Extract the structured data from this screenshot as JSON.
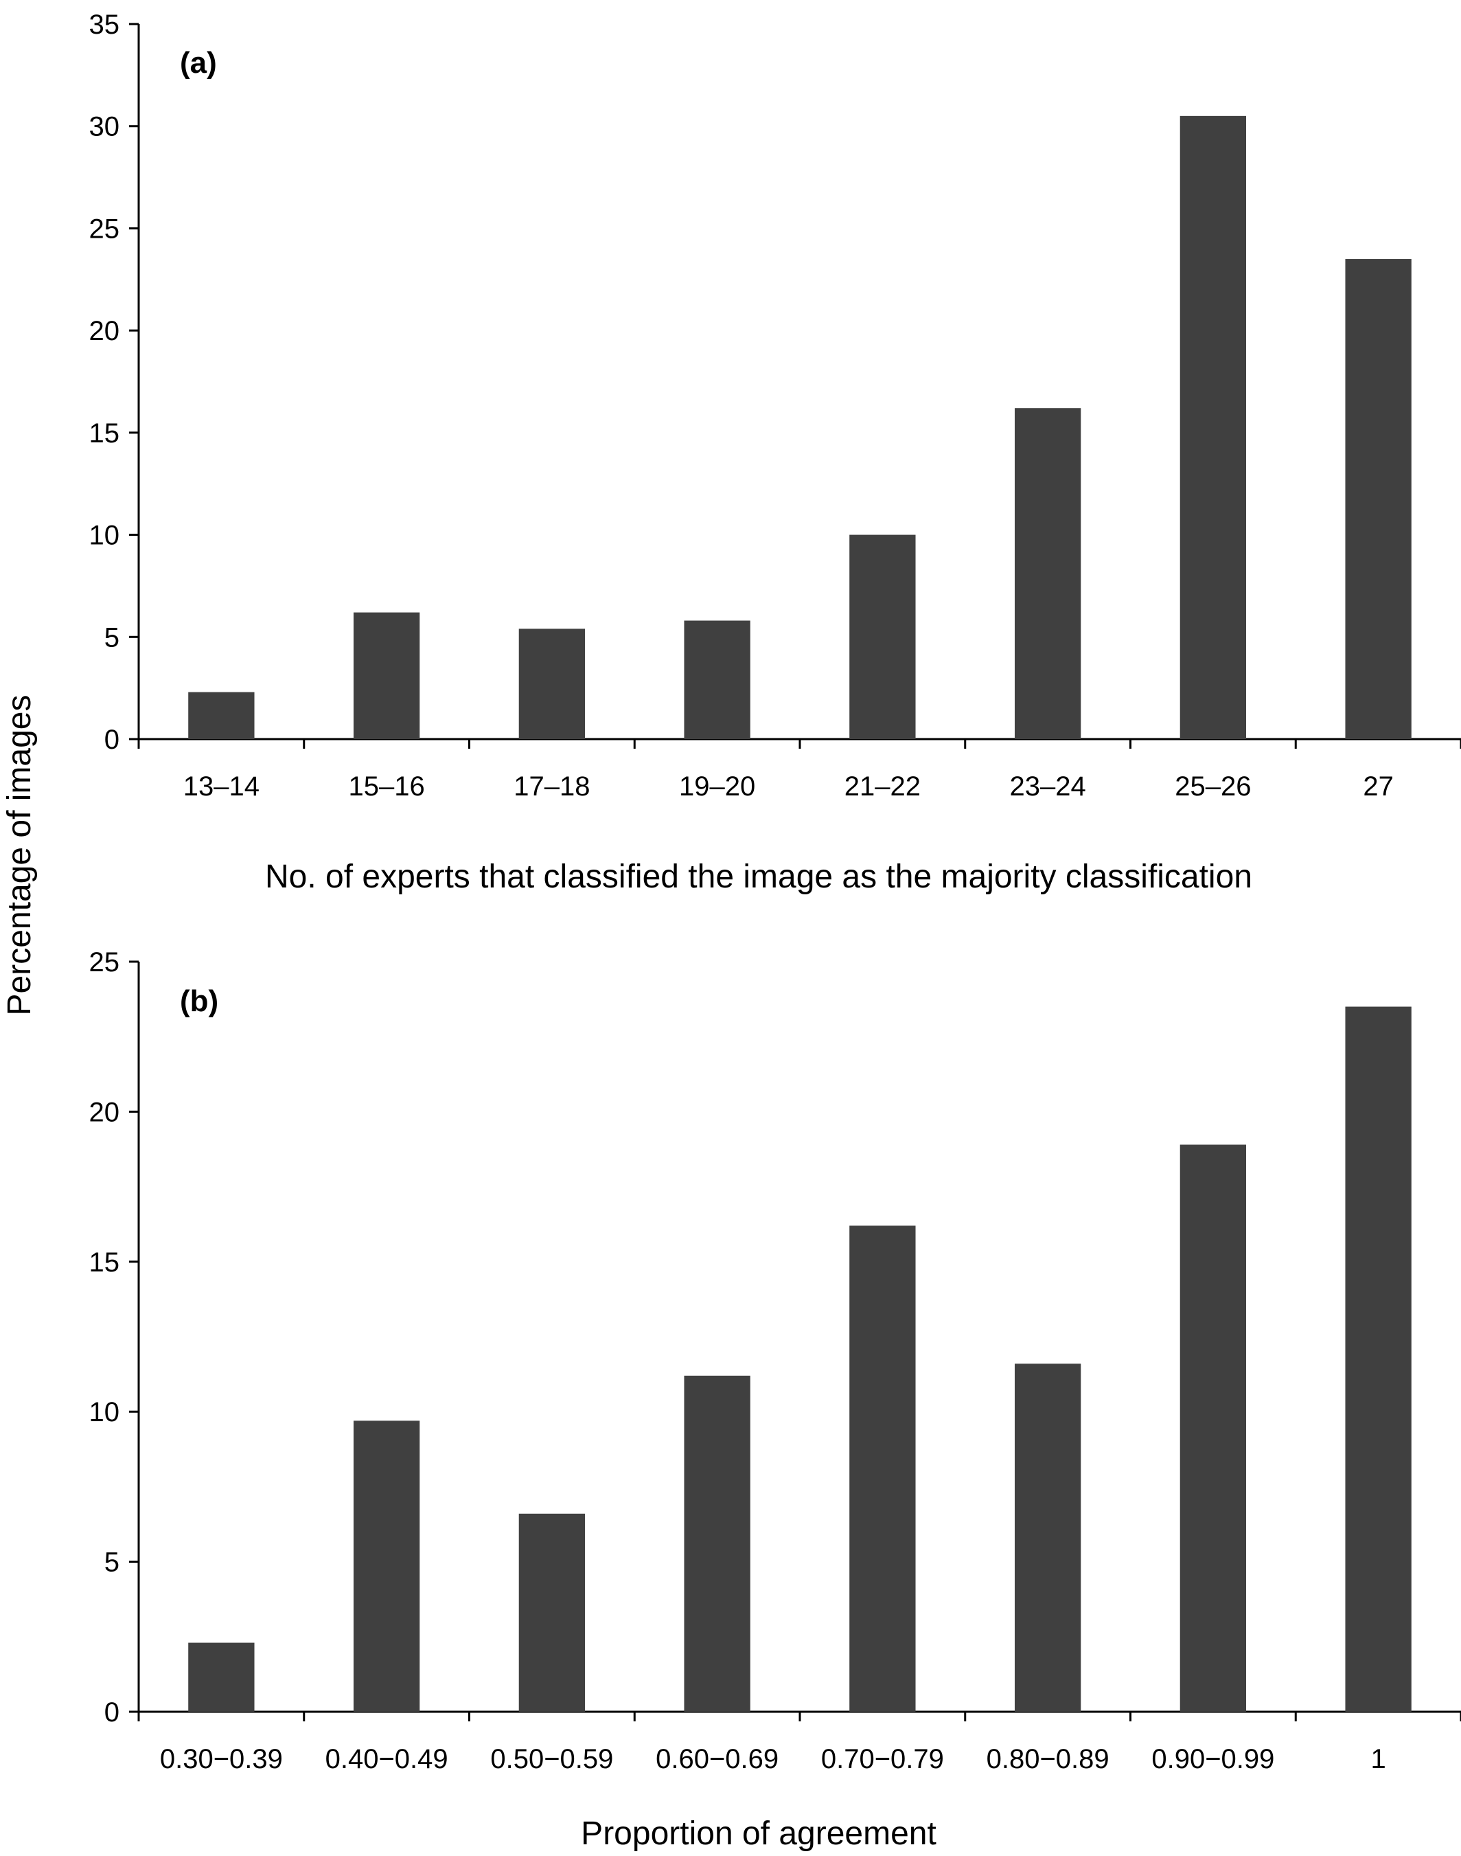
{
  "shared_ylabel": "Percentage of images",
  "colors": {
    "bar": "#404040",
    "axis": "#000000"
  },
  "chart_data": [
    {
      "type": "bar",
      "panel_label": "(a)",
      "categories": [
        "13–14",
        "15–16",
        "17–18",
        "19–20",
        "21–22",
        "23–24",
        "25–26",
        "27"
      ],
      "values": [
        2.3,
        6.2,
        5.4,
        5.8,
        10.0,
        16.2,
        30.5,
        23.5
      ],
      "xlabel": "No. of experts that classified the image as the majority classification",
      "ylabel": "Percentage of images",
      "ylim": [
        0,
        35
      ],
      "yticks": [
        0,
        5,
        10,
        15,
        20,
        25,
        30,
        35
      ],
      "grid": false,
      "legend": "none"
    },
    {
      "type": "bar",
      "panel_label": "(b)",
      "categories": [
        "0.30−0.39",
        "0.40−0.49",
        "0.50−0.59",
        "0.60−0.69",
        "0.70−0.79",
        "0.80−0.89",
        "0.90−0.99",
        "1"
      ],
      "values": [
        2.3,
        9.7,
        6.6,
        11.2,
        16.2,
        11.6,
        18.9,
        23.5
      ],
      "xlabel": "Proportion of agreement",
      "ylabel": "Percentage of images",
      "ylim": [
        0,
        25
      ],
      "yticks": [
        0,
        5,
        10,
        15,
        20,
        25
      ],
      "grid": false,
      "legend": "none"
    }
  ]
}
